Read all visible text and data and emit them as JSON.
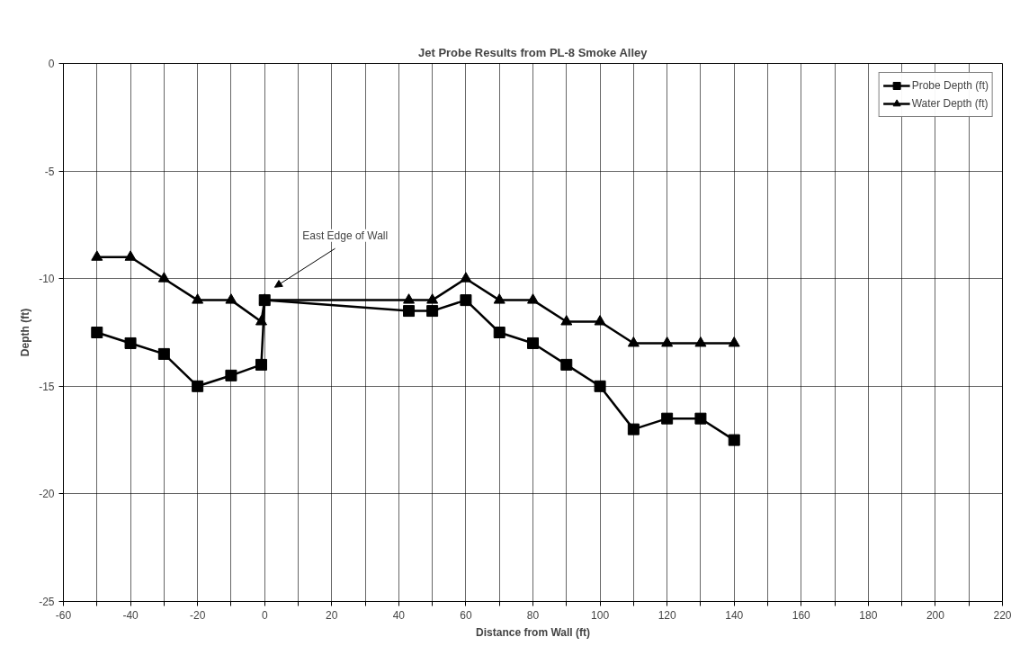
{
  "chart_data": {
    "type": "line",
    "title": "Jet Probe Results from PL-8 Smoke Alley",
    "xlabel": "Distance from Wall (ft)",
    "ylabel": "Depth (ft)",
    "xlim": [
      -60,
      220
    ],
    "ylim": [
      -25,
      0
    ],
    "xticks": [
      -60,
      {
        "value": -50,
        "label": null
      },
      -40,
      {
        "value": -30,
        "label": null
      },
      -20,
      {
        "value": -10,
        "label": null
      },
      0,
      {
        "value": 10,
        "label": null
      },
      20,
      {
        "value": 30,
        "label": null
      },
      40,
      {
        "value": 50,
        "label": null
      },
      60,
      {
        "value": 70,
        "label": null
      },
      80,
      {
        "value": 90,
        "label": null
      },
      100,
      {
        "value": 110,
        "label": null
      },
      120,
      {
        "value": 130,
        "label": null
      },
      140,
      {
        "value": 150,
        "label": null
      },
      160,
      {
        "value": 170,
        "label": null
      },
      180,
      {
        "value": 190,
        "label": null
      },
      200,
      {
        "value": 210,
        "label": null
      },
      220
    ],
    "yticks": [
      -25,
      -20,
      -15,
      -10,
      -5,
      0
    ],
    "grid": true,
    "legend": "top right",
    "line_style": "solid",
    "x": [
      -50,
      -40,
      -30,
      -20,
      -10,
      -1,
      0,
      43,
      50,
      60,
      70,
      80,
      90,
      100,
      110,
      120,
      130,
      140
    ],
    "series": [
      {
        "name": "Probe Depth (ft)",
        "color": "#000000",
        "marker": "square",
        "values": [
          -12.5,
          -13,
          -13.5,
          -15,
          -14.5,
          -14,
          -11,
          -11.5,
          -11.5,
          -11,
          -12.5,
          -13,
          -14,
          -15,
          -17,
          -16.5,
          -16.5,
          -17.5
        ]
      },
      {
        "name": "Water Depth (ft)",
        "color": "#000000",
        "marker": "triangle",
        "values": [
          -9,
          -9,
          -10,
          -11,
          -11,
          -12,
          -11,
          -11,
          -11,
          -10,
          -11,
          -11,
          -12,
          -12,
          -13,
          -13,
          -13,
          -13
        ]
      }
    ],
    "annotations": [
      "East Edge of Wall"
    ]
  }
}
